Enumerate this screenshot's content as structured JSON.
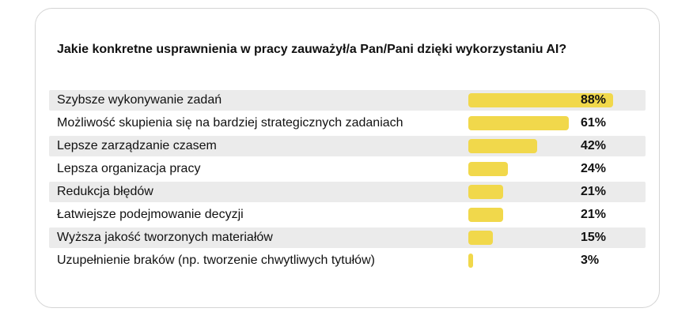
{
  "title": "Jakie konkretne usprawnienia w pracy zauważył/a Pan/Pani dzięki wykorzystaniu AI?",
  "colors": {
    "bar": "#f1d84b",
    "row_shade": "#ebebeb",
    "text": "#111111",
    "card_border": "#d4d4d4"
  },
  "chart_data": {
    "type": "bar",
    "orientation": "horizontal",
    "title": "Jakie konkretne usprawnienia w pracy zauważył/a Pan/Pani dzięki wykorzystaniu AI?",
    "categories": [
      "Szybsze wykonywanie zadań",
      "Możliwość skupienia się na bardziej strategicznych zadaniach",
      "Lepsze zarządzanie czasem",
      "Lepsza organizacja pracy",
      "Redukcja błędów",
      "Łatwiejsze podejmowanie decyzji",
      "Wyższa jakość tworzonych materiałów",
      "Uzupełnienie braków (np. tworzenie chwytliwych tytułów)"
    ],
    "values": [
      88,
      61,
      42,
      24,
      21,
      21,
      15,
      3
    ],
    "value_labels": [
      "88%",
      "61%",
      "42%",
      "24%",
      "21%",
      "21%",
      "15%",
      "3%"
    ],
    "xlabel": "",
    "ylabel": "",
    "xlim": [
      0,
      100
    ],
    "grid": false,
    "legend": "none"
  }
}
